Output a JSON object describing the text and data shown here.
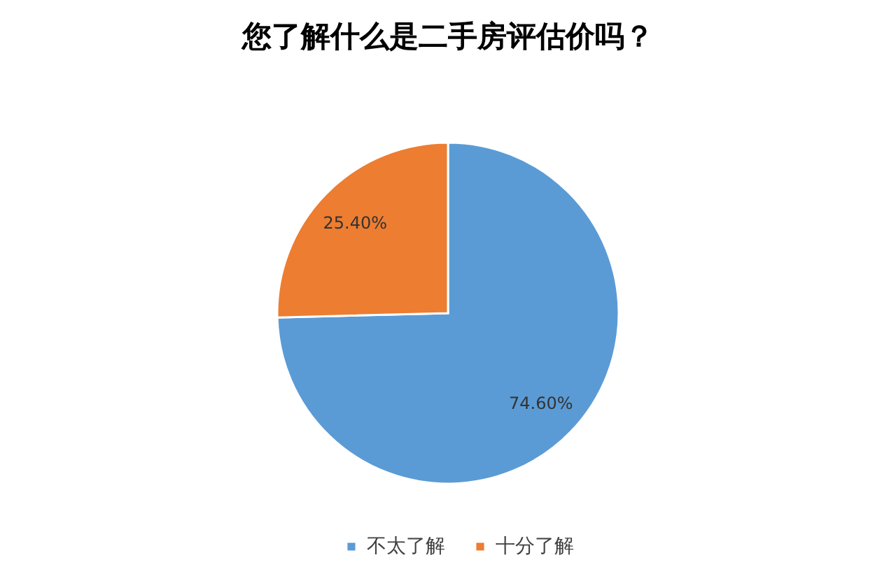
{
  "chart_data": {
    "type": "pie",
    "title": "您了解什么是二手房评估价吗？",
    "categories": [
      "不太了解",
      "十分了解"
    ],
    "values": [
      74.6,
      25.4
    ],
    "colors": [
      "#5b9bd5",
      "#ed7d31"
    ],
    "value_labels": [
      "74.60%",
      "25.40%"
    ],
    "legend": "bottom"
  }
}
